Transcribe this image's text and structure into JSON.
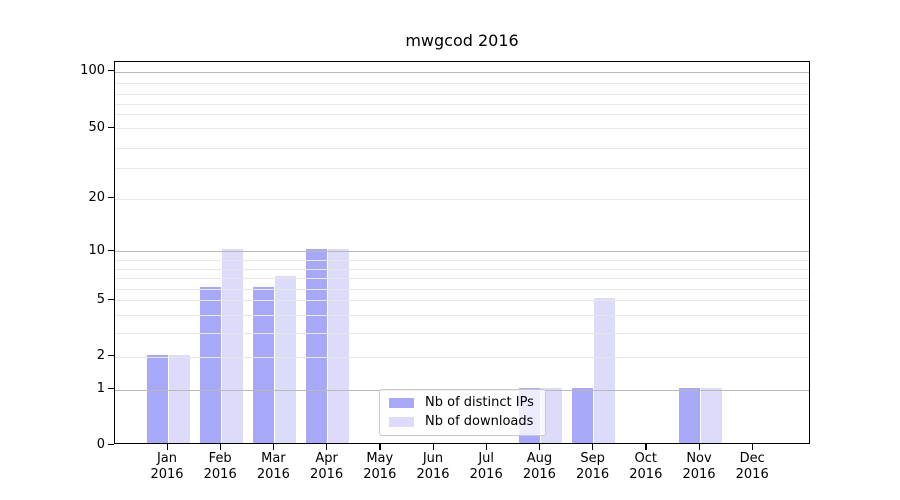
{
  "title": "mwgcod 2016",
  "colors": {
    "distinct_ips_bar": "#a8a8f8",
    "downloads_bar": "#dcdcfa",
    "grid_major": "#b9b9b9",
    "grid_minor": "#e7e7e7",
    "axis_spine": "#000000",
    "legend_border": "#c9c9c9"
  },
  "legend": {
    "items": [
      {
        "label": "Nb of distinct IPs",
        "color": "#a8a8f8"
      },
      {
        "label": "Nb of downloads",
        "color": "#dcdcfa"
      }
    ]
  },
  "chart_data": {
    "type": "bar",
    "title": "mwgcod 2016",
    "categories": [
      "Jan",
      "Feb",
      "Mar",
      "Apr",
      "May",
      "Jun",
      "Jul",
      "Aug",
      "Sep",
      "Oct",
      "Nov",
      "Dec"
    ],
    "x_year_label": "2016",
    "series": [
      {
        "name": "Nb of distinct IPs",
        "values": [
          2,
          6,
          6,
          10,
          0,
          0,
          0,
          1,
          1,
          0,
          1,
          0
        ]
      },
      {
        "name": "Nb of downloads",
        "values": [
          2,
          10,
          7,
          10,
          0,
          0,
          0,
          1,
          5,
          0,
          1,
          0
        ]
      }
    ],
    "xlabel": "",
    "ylabel": "",
    "yscale": "symlog",
    "yticks": [
      0,
      1,
      2,
      5,
      10,
      20,
      50,
      100
    ],
    "ylim": [
      0,
      120
    ],
    "grid": "both (horizontal only)",
    "legend_position": "lower center, inside axes"
  }
}
